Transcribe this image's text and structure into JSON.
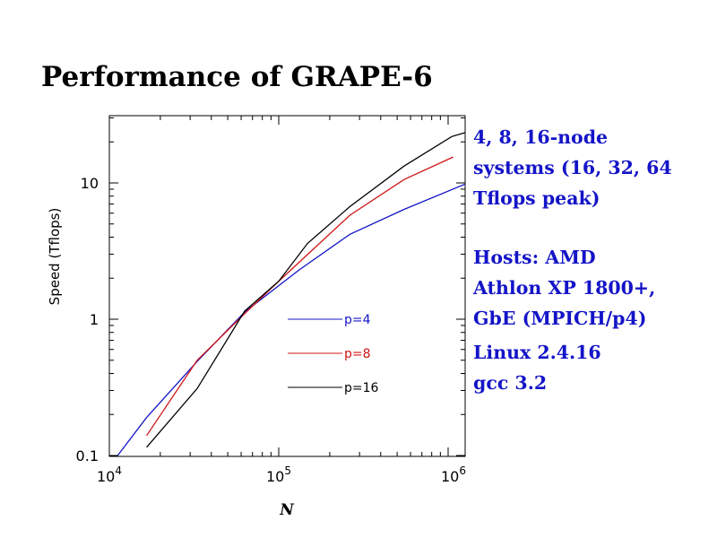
{
  "slide": {
    "title": "Performance of GRAPE-6",
    "notes": [
      [
        "4, 8, 16-node",
        "systems (16, 32, 64",
        "Tflops peak)"
      ],
      [
        "Hosts: AMD",
        "Athlon XP 1800+,",
        "GbE (MPICH/p4)"
      ],
      [
        "Linux 2.4.16",
        "gcc 3.2"
      ]
    ]
  },
  "chart_data": {
    "type": "line",
    "title": "",
    "xlabel": "N",
    "ylabel": "Speed (Tflops)",
    "xscale": "log",
    "yscale": "log",
    "xlim": [
      10000,
      1260000
    ],
    "ylim": [
      0.1,
      31
    ],
    "x_ticks": [
      {
        "value": 10000,
        "base": "10",
        "exp": "4"
      },
      {
        "value": 100000,
        "base": "10",
        "exp": "5"
      },
      {
        "value": 1000000,
        "base": "10",
        "exp": "6"
      }
    ],
    "y_ticks": [
      {
        "value": 0.1,
        "label": "0.1"
      },
      {
        "value": 1,
        "label": "1"
      },
      {
        "value": 10,
        "label": "10"
      }
    ],
    "grid": false,
    "legend_position": "center-right",
    "series": [
      {
        "name": "p=4",
        "color": "#1414c8",
        "x": [
          11200,
          16600,
          33000,
          63000,
          132000,
          263000,
          550000,
          1260000
        ],
        "y": [
          0.1,
          0.19,
          0.49,
          1.13,
          2.3,
          4.2,
          6.4,
          9.8
        ]
      },
      {
        "name": "p=8",
        "color": "#d01414",
        "x": [
          16600,
          33000,
          63000,
          100000,
          263000,
          550000,
          1070000
        ],
        "y": [
          0.14,
          0.5,
          1.1,
          1.9,
          5.8,
          10.6,
          15.5
        ]
      },
      {
        "name": "p=16",
        "color": "#000000",
        "x": [
          16600,
          33000,
          63000,
          100000,
          148000,
          263000,
          550000,
          1050000,
          1260000
        ],
        "y": [
          0.115,
          0.31,
          1.15,
          1.9,
          3.6,
          6.7,
          13.3,
          21.9,
          23.4
        ]
      }
    ]
  }
}
